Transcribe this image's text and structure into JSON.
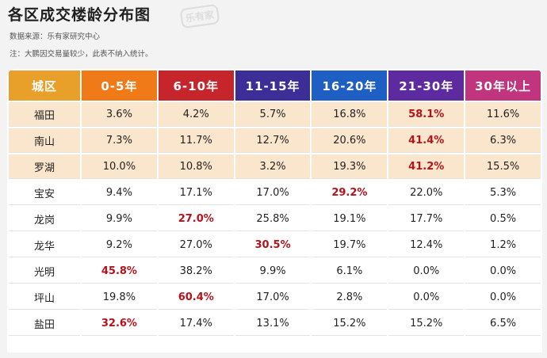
{
  "title": "各区成交楼龄分布图",
  "source": "数据来源：乐有家研究中心",
  "note": "注：大鹏因交易量较少，此表不纳入统计。",
  "watermark": "乐有家",
  "headers": [
    {
      "label": "城区",
      "color": "#e8a02a"
    },
    {
      "label": "0-5年",
      "color": "#f07a18"
    },
    {
      "label": "6-10年",
      "color": "#c6252b"
    },
    {
      "label": "11-15年",
      "color": "#3d2d96"
    },
    {
      "label": "16-20年",
      "color": "#1f5fc3"
    },
    {
      "label": "21-30年",
      "color": "#5e2aa0"
    },
    {
      "label": "30年以上",
      "color": "#c1347e"
    }
  ],
  "highlight_color": "#f9e6cc",
  "emphasis_color": "#b5121b",
  "rows": [
    {
      "district": "福田",
      "values": [
        "3.6%",
        "4.2%",
        "5.7%",
        "16.8%",
        "58.1%",
        "11.6%"
      ],
      "max_index": 4,
      "highlight": true
    },
    {
      "district": "南山",
      "values": [
        "7.3%",
        "11.7%",
        "12.7%",
        "20.6%",
        "41.4%",
        "6.3%"
      ],
      "max_index": 4,
      "highlight": true
    },
    {
      "district": "罗湖",
      "values": [
        "10.0%",
        "10.8%",
        "3.2%",
        "19.3%",
        "41.2%",
        "15.5%"
      ],
      "max_index": 4,
      "highlight": true
    },
    {
      "district": "宝安",
      "values": [
        "9.4%",
        "17.1%",
        "17.0%",
        "29.2%",
        "22.0%",
        "5.3%"
      ],
      "max_index": 3,
      "highlight": false
    },
    {
      "district": "龙岗",
      "values": [
        "9.9%",
        "27.0%",
        "25.8%",
        "19.1%",
        "17.7%",
        "0.5%"
      ],
      "max_index": 1,
      "highlight": false
    },
    {
      "district": "龙华",
      "values": [
        "9.2%",
        "27.0%",
        "30.5%",
        "19.7%",
        "12.4%",
        "1.2%"
      ],
      "max_index": 2,
      "highlight": false
    },
    {
      "district": "光明",
      "values": [
        "45.8%",
        "38.2%",
        "9.9%",
        "6.1%",
        "0.0%",
        "0.0%"
      ],
      "max_index": 0,
      "highlight": false
    },
    {
      "district": "坪山",
      "values": [
        "19.8%",
        "60.4%",
        "17.0%",
        "2.8%",
        "0.0%",
        "0.0%"
      ],
      "max_index": 1,
      "highlight": false
    },
    {
      "district": "盐田",
      "values": [
        "32.6%",
        "17.4%",
        "13.1%",
        "15.2%",
        "15.2%",
        "6.5%"
      ],
      "max_index": 0,
      "highlight": false
    }
  ]
}
